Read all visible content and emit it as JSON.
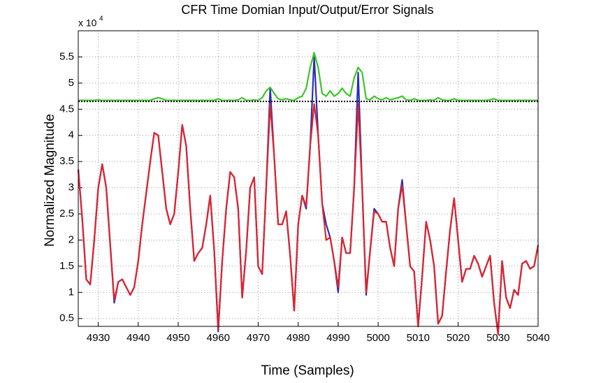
{
  "chart_data": {
    "type": "line",
    "title": "CFR Time Domian Input/Output/Error Signals",
    "x_label": "Time (Samples)",
    "y_label": "Normalized Magnitude",
    "y_multiplier": {
      "base": "x 10",
      "exponent": "4"
    },
    "x": [
      4925,
      4926,
      4927,
      4928,
      4929,
      4930,
      4931,
      4932,
      4933,
      4934,
      4935,
      4936,
      4937,
      4938,
      4939,
      4940,
      4941,
      4942,
      4943,
      4944,
      4945,
      4946,
      4947,
      4948,
      4949,
      4950,
      4951,
      4952,
      4953,
      4954,
      4955,
      4956,
      4957,
      4958,
      4959,
      4960,
      4961,
      4962,
      4963,
      4964,
      4965,
      4966,
      4967,
      4968,
      4969,
      4970,
      4971,
      4972,
      4973,
      4974,
      4975,
      4976,
      4977,
      4978,
      4979,
      4980,
      4981,
      4982,
      4983,
      4984,
      4985,
      4986,
      4987,
      4988,
      4989,
      4990,
      4991,
      4992,
      4993,
      4994,
      4995,
      4996,
      4997,
      4998,
      4999,
      5000,
      5001,
      5002,
      5003,
      5004,
      5005,
      5006,
      5007,
      5008,
      5009,
      5010,
      5011,
      5012,
      5013,
      5014,
      5015,
      5016,
      5017,
      5018,
      5019,
      5020,
      5021,
      5022,
      5023,
      5024,
      5025,
      5026,
      5027,
      5028,
      5029,
      5030,
      5031,
      5032,
      5033,
      5034,
      5035,
      5036,
      5037,
      5038,
      5039,
      5040
    ],
    "series": [
      {
        "color": "#2a2fb8",
        "values": [
          3.35,
          2.4,
          1.25,
          1.15,
          2.0,
          3.0,
          3.45,
          3.0,
          1.9,
          0.8,
          1.2,
          1.25,
          1.1,
          0.95,
          1.1,
          1.6,
          2.3,
          2.9,
          3.5,
          4.05,
          4.0,
          3.3,
          2.6,
          2.3,
          2.5,
          3.3,
          4.2,
          3.8,
          2.6,
          1.6,
          1.75,
          1.85,
          2.3,
          2.85,
          1.8,
          0.25,
          1.6,
          2.6,
          3.3,
          3.2,
          2.6,
          0.9,
          1.8,
          3.0,
          3.2,
          1.5,
          1.35,
          3.0,
          4.9,
          3.6,
          2.3,
          2.3,
          2.55,
          1.7,
          0.65,
          2.3,
          2.85,
          2.6,
          3.8,
          5.5,
          4.0,
          2.7,
          2.3,
          2.05,
          1.6,
          1.0,
          2.05,
          1.75,
          1.75,
          3.0,
          5.2,
          3.0,
          0.95,
          1.8,
          2.6,
          2.5,
          2.35,
          2.35,
          1.85,
          1.5,
          2.6,
          3.15,
          2.3,
          1.5,
          1.4,
          0.35,
          1.3,
          2.35,
          2.0,
          1.5,
          0.4,
          0.55,
          1.4,
          2.2,
          2.8,
          2.0,
          1.2,
          1.45,
          1.45,
          1.7,
          1.55,
          1.3,
          1.5,
          1.7,
          0.8,
          0.2,
          1.6,
          0.9,
          0.7,
          1.05,
          0.95,
          1.55,
          1.6,
          1.45,
          1.5,
          1.9
        ]
      },
      {
        "color": "#e0232b",
        "values": [
          3.35,
          2.4,
          1.25,
          1.15,
          2.0,
          3.0,
          3.45,
          3.0,
          1.9,
          0.85,
          1.2,
          1.25,
          1.1,
          0.95,
          1.1,
          1.6,
          2.3,
          2.9,
          3.5,
          4.05,
          4.0,
          3.3,
          2.6,
          2.3,
          2.5,
          3.3,
          4.2,
          3.8,
          2.6,
          1.6,
          1.75,
          1.85,
          2.3,
          2.85,
          1.8,
          0.3,
          1.6,
          2.6,
          3.3,
          3.2,
          2.6,
          0.9,
          1.8,
          3.0,
          3.2,
          1.5,
          1.35,
          3.0,
          4.6,
          3.6,
          2.3,
          2.3,
          2.55,
          1.7,
          0.65,
          2.3,
          2.85,
          2.65,
          3.8,
          4.6,
          4.0,
          2.7,
          2.0,
          2.05,
          1.6,
          1.1,
          2.05,
          1.75,
          1.75,
          3.0,
          4.6,
          3.0,
          1.0,
          1.8,
          2.55,
          2.5,
          2.35,
          2.35,
          1.85,
          1.5,
          2.6,
          3.05,
          2.3,
          1.5,
          1.4,
          0.35,
          1.3,
          2.35,
          2.0,
          1.5,
          0.4,
          0.55,
          1.4,
          2.2,
          2.8,
          2.0,
          1.2,
          1.45,
          1.45,
          1.7,
          1.55,
          1.3,
          1.5,
          1.7,
          0.8,
          0.2,
          1.6,
          0.9,
          0.7,
          1.05,
          0.95,
          1.55,
          1.6,
          1.45,
          1.5,
          1.9
        ]
      },
      {
        "color": "#3ec42a",
        "values": [
          4.67,
          4.67,
          4.67,
          4.67,
          4.67,
          4.68,
          4.67,
          4.67,
          4.67,
          4.67,
          4.67,
          4.67,
          4.67,
          4.67,
          4.67,
          4.67,
          4.67,
          4.67,
          4.67,
          4.7,
          4.72,
          4.7,
          4.67,
          4.67,
          4.67,
          4.67,
          4.67,
          4.67,
          4.67,
          4.67,
          4.67,
          4.67,
          4.67,
          4.67,
          4.67,
          4.7,
          4.67,
          4.67,
          4.67,
          4.67,
          4.68,
          4.72,
          4.67,
          4.67,
          4.68,
          4.67,
          4.72,
          4.85,
          4.92,
          4.8,
          4.7,
          4.68,
          4.7,
          4.68,
          4.67,
          4.72,
          4.75,
          4.9,
          5.3,
          5.58,
          5.3,
          4.8,
          4.75,
          4.85,
          4.75,
          4.8,
          4.9,
          4.8,
          4.75,
          5.1,
          5.3,
          5.2,
          4.7,
          4.68,
          4.75,
          4.7,
          4.68,
          4.72,
          4.68,
          4.7,
          4.72,
          4.75,
          4.68,
          4.67,
          4.7,
          4.67,
          4.67,
          4.67,
          4.68,
          4.67,
          4.72,
          4.68,
          4.67,
          4.67,
          4.7,
          4.67,
          4.67,
          4.67,
          4.67,
          4.67,
          4.67,
          4.67,
          4.67,
          4.68,
          4.7,
          4.67,
          4.67,
          4.67,
          4.67,
          4.67,
          4.67,
          4.67,
          4.67,
          4.67,
          4.67,
          4.67
        ]
      }
    ],
    "threshold_line": {
      "value": 4.65,
      "color": "#000000"
    },
    "xlim": [
      4925,
      5040
    ],
    "ylim": [
      0.35,
      6
    ],
    "xticks": [
      4930,
      4940,
      4950,
      4960,
      4970,
      4980,
      4990,
      5000,
      5010,
      5020,
      5030,
      5040
    ],
    "yticks": [
      0.5,
      1,
      1.5,
      2,
      2.5,
      3,
      3.5,
      4,
      4.5,
      5,
      5.5
    ],
    "grid": true
  }
}
